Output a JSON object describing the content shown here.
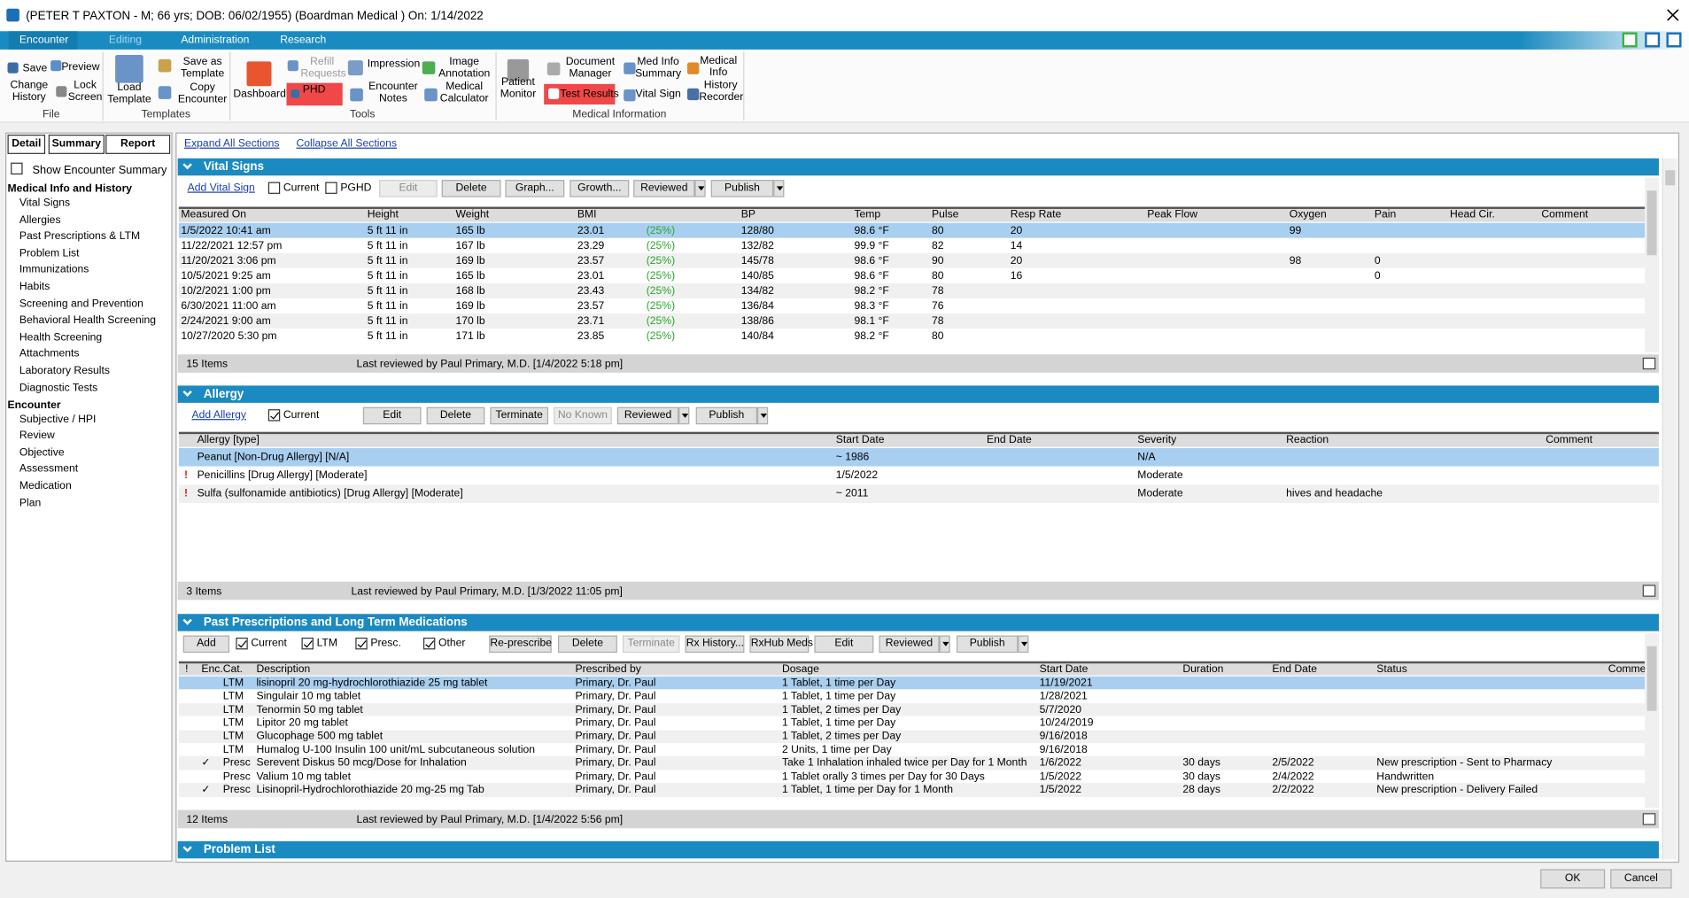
{
  "window": {
    "title": "(PETER T PAXTON - M; 66 yrs; DOB: 06/02/1955) (Boardman Medical ) On: 1/14/2022"
  },
  "menu": [
    "Encounter",
    "Editing",
    "Administration",
    "Research"
  ],
  "ribbon": {
    "groups": [
      {
        "label": "File",
        "items": [
          {
            "label": "Save"
          },
          {
            "label": "Preview"
          },
          {
            "label": "Change History"
          },
          {
            "label": "Lock Screen"
          }
        ]
      },
      {
        "label": "Templates",
        "items": [
          {
            "label": "Load Template"
          },
          {
            "label": "Save as Template"
          },
          {
            "label": "Copy Encounter"
          }
        ]
      },
      {
        "label": "Tools",
        "items": [
          {
            "label": "Dashboard"
          },
          {
            "label": "Refill Requests",
            "disabled": true
          },
          {
            "label": "PHD",
            "highlight": true
          },
          {
            "label": "Impression"
          },
          {
            "label": "Image Annotation"
          },
          {
            "label": "Encounter Notes"
          },
          {
            "label": "Medical Calculator"
          }
        ]
      },
      {
        "label": "Medical Information",
        "items": [
          {
            "label": "Patient Monitor"
          },
          {
            "label": "Document Manager"
          },
          {
            "label": "Test Results",
            "highlight": true
          },
          {
            "label": "Med Info Summary"
          },
          {
            "label": "Vital Sign"
          },
          {
            "label": "Medical Info"
          },
          {
            "label": "History Recorder"
          }
        ]
      }
    ]
  },
  "left_panel": {
    "tabs": [
      "Detail",
      "Summary",
      "Report"
    ],
    "show_summary": "Show Encounter Summary",
    "groups": [
      {
        "title": "Medical Info and History",
        "items": [
          "Vital Signs",
          "Allergies",
          "Past Prescriptions & LTM",
          "Problem List",
          "Immunizations",
          "Habits",
          "Screening and Prevention",
          "Behavioral Health Screening",
          "Health Screening",
          "Attachments",
          "Laboratory Results",
          "Diagnostic Tests"
        ]
      },
      {
        "title": "Encounter",
        "items": [
          "Subjective / HPI",
          "Review",
          "Objective",
          "Assessment",
          "Medication",
          "Plan"
        ]
      }
    ]
  },
  "links": [
    "Expand All Sections",
    "Collapse All Sections"
  ],
  "sections": [
    {
      "title": "Vital Signs",
      "toolbar": [
        {
          "label": "Add Vital Sign",
          "kind": "link"
        },
        {
          "label": "Current",
          "kind": "check",
          "checked": false
        },
        {
          "label": "PGHD",
          "kind": "check",
          "checked": false
        },
        {
          "label": "Edit",
          "kind": "button",
          "disabled": true
        },
        {
          "label": "Delete",
          "kind": "button"
        },
        {
          "label": "Graph...",
          "kind": "button"
        },
        {
          "label": "Growth...",
          "kind": "button"
        },
        {
          "label": "Reviewed",
          "kind": "dropdown"
        },
        {
          "label": "Publish",
          "kind": "dropdown"
        }
      ],
      "columns": [
        "Measured On",
        "Height",
        "Weight",
        "BMI",
        null,
        "BP",
        "Temp",
        "Pulse",
        "Resp Rate",
        "Peak Flow",
        "Oxygen",
        "Pain",
        "Head Cir.",
        "Comment"
      ],
      "rows": [
        [
          "1/5/2022 10:41 am",
          "5 ft 11 in",
          "165 lb",
          "23.01",
          "(25%)",
          "128/80",
          "98.6 °F",
          "80",
          "20",
          null,
          "99",
          null,
          null,
          null
        ],
        [
          "11/22/2021 12:57 pm",
          "5 ft 11 in",
          "167 lb",
          "23.29",
          "(25%)",
          "132/82",
          "99.9 °F",
          "82",
          "14",
          null,
          null,
          null,
          null,
          null
        ],
        [
          "11/20/2021 3:06 pm",
          "5 ft 11 in",
          "169 lb",
          "23.57",
          "(25%)",
          "145/78",
          "98.6 °F",
          "90",
          "20",
          null,
          "98",
          "0",
          null,
          null
        ],
        [
          "10/5/2021 9:25 am",
          "5 ft 11 in",
          "165 lb",
          "23.01",
          "(25%)",
          "140/85",
          "98.6 °F",
          "80",
          "16",
          null,
          null,
          "0",
          null,
          null
        ],
        [
          "10/2/2021 1:00 pm",
          "5 ft 11 in",
          "168 lb",
          "23.43",
          "(25%)",
          "134/82",
          "98.2 °F",
          "78",
          null,
          null,
          null,
          null,
          null,
          null
        ],
        [
          "6/30/2021 11:00 am",
          "5 ft 11 in",
          "169 lb",
          "23.57",
          "(25%)",
          "136/84",
          "98.3 °F",
          "76",
          null,
          null,
          null,
          null,
          null,
          null
        ],
        [
          "2/24/2021 9:00 am",
          "5 ft 11 in",
          "170 lb",
          "23.71",
          "(25%)",
          "138/86",
          "98.1 °F",
          "78",
          null,
          null,
          null,
          null,
          null,
          null
        ],
        [
          "10/27/2020 5:30 pm",
          "5 ft 11 in",
          "171 lb",
          "23.85",
          "(25%)",
          "140/84",
          "98.2 °F",
          "80",
          null,
          null,
          null,
          null,
          null,
          null
        ]
      ],
      "count": "15 Items",
      "reviewed": "Last reviewed by Paul Primary, M.D. [1/4/2022 5:18 pm]"
    },
    {
      "title": "Allergy",
      "toolbar": [
        {
          "label": "Add Allergy",
          "kind": "link"
        },
        {
          "label": "Current",
          "kind": "check",
          "checked": true
        },
        {
          "label": "Edit",
          "kind": "button"
        },
        {
          "label": "Delete",
          "kind": "button"
        },
        {
          "label": "Terminate",
          "kind": "button"
        },
        {
          "label": "No Known",
          "kind": "button",
          "disabled": true
        },
        {
          "label": "Reviewed",
          "kind": "dropdown"
        },
        {
          "label": "Publish",
          "kind": "dropdown"
        }
      ],
      "columns": [
        null,
        "Allergy [type]",
        "Start Date",
        "End Date",
        "Severity",
        "Reaction",
        "Comment"
      ],
      "rows": [
        [
          null,
          "Peanut [Non-Drug Allergy] [N/A]",
          "~ 1986",
          null,
          "N/A",
          null,
          null
        ],
        [
          "!",
          "Penicillins [Drug Allergy] [Moderate]",
          "1/5/2022",
          null,
          "Moderate",
          null,
          null
        ],
        [
          "!",
          "Sulfa (sulfonamide antibiotics) [Drug Allergy] [Moderate]",
          "~ 2011",
          null,
          "Moderate",
          "hives and headache",
          null
        ]
      ],
      "count": "3 Items",
      "reviewed": "Last reviewed by Paul Primary, M.D. [1/3/2022 11:05 pm]"
    },
    {
      "title": "Past Prescriptions and Long Term Medications",
      "toolbar": [
        {
          "label": "Add",
          "kind": "button"
        },
        {
          "label": "Current",
          "kind": "check",
          "checked": true
        },
        {
          "label": "LTM",
          "kind": "check",
          "checked": true
        },
        {
          "label": "Presc.",
          "kind": "check",
          "checked": true
        },
        {
          "label": "Other",
          "kind": "check",
          "checked": true
        },
        {
          "label": "Re-prescribe",
          "kind": "button"
        },
        {
          "label": "Delete",
          "kind": "button"
        },
        {
          "label": "Terminate",
          "kind": "button",
          "disabled": true
        },
        {
          "label": "Rx History...",
          "kind": "button"
        },
        {
          "label": "RxHub Meds",
          "kind": "button"
        },
        {
          "label": "Edit",
          "kind": "button"
        },
        {
          "label": "Reviewed",
          "kind": "dropdown"
        },
        {
          "label": "Publish",
          "kind": "dropdown"
        }
      ],
      "columns": [
        "!",
        "Enc.",
        "Cat.",
        "Description",
        "Prescribed by",
        "Dosage",
        "Start Date",
        "Duration",
        "End Date",
        "Status",
        "Comme"
      ],
      "rows": [
        [
          null,
          null,
          "LTM",
          "lisinopril 20 mg-hydrochlorothiazide 25 mg tablet",
          "Primary, Dr.  Paul",
          "1 Tablet, 1 time per Day",
          "11/19/2021",
          null,
          null,
          null,
          null
        ],
        [
          null,
          null,
          "LTM",
          "Singulair 10 mg tablet",
          "Primary, Dr.  Paul",
          "1 Tablet, 1 time per Day",
          "1/28/2021",
          null,
          null,
          null,
          null
        ],
        [
          null,
          null,
          "LTM",
          "Tenormin 50 mg tablet",
          "Primary, Dr.  Paul",
          "1 Tablet, 2 times per Day",
          "5/7/2020",
          null,
          null,
          null,
          null
        ],
        [
          null,
          null,
          "LTM",
          "Lipitor 20 mg tablet",
          "Primary, Dr.  Paul",
          "1 Tablet, 1 time per Day",
          "10/24/2019",
          null,
          null,
          null,
          null
        ],
        [
          null,
          null,
          "LTM",
          "Glucophage 500 mg tablet",
          "Primary, Dr.  Paul",
          "1 Tablet, 2 times per Day",
          "9/16/2018",
          null,
          null,
          null,
          null
        ],
        [
          null,
          null,
          "LTM",
          "Humalog U-100 Insulin 100 unit/mL subcutaneous solution",
          "Primary, Dr.  Paul",
          "2 Units, 1 time per Day",
          "9/16/2018",
          null,
          null,
          null,
          null
        ],
        [
          null,
          "✓",
          "Presc",
          "Serevent Diskus 50 mcg/Dose for Inhalation",
          "Primary, Dr. Paul",
          "Take 1 Inhalation inhaled twice per Day for 1 Month",
          "1/6/2022",
          "30 days",
          "2/5/2022",
          "New prescription - Sent to Pharmacy",
          null
        ],
        [
          null,
          null,
          "Presc",
          "Valium 10 mg tablet",
          "Primary, Dr. Paul",
          "1 Tablet orally 3 times per Day for 30 Days",
          "1/5/2022",
          "30 days",
          "2/4/2022",
          "Handwritten",
          null
        ],
        [
          null,
          "✓",
          "Presc",
          "Lisinopril-Hydrochlorothiazide 20 mg-25 mg Tab",
          "Primary, Dr. Paul",
          "1 Tablet, 1 time per Day for 1 Month",
          "1/5/2022",
          "28 days",
          "2/2/2022",
          "New prescription - Delivery Failed",
          null
        ]
      ],
      "count": "12 Items",
      "reviewed": "Last reviewed by Paul Primary, M.D. [1/4/2022 5:56 pm]"
    },
    {
      "title": "Problem List"
    }
  ],
  "buttons": [
    "OK",
    "Cancel"
  ]
}
